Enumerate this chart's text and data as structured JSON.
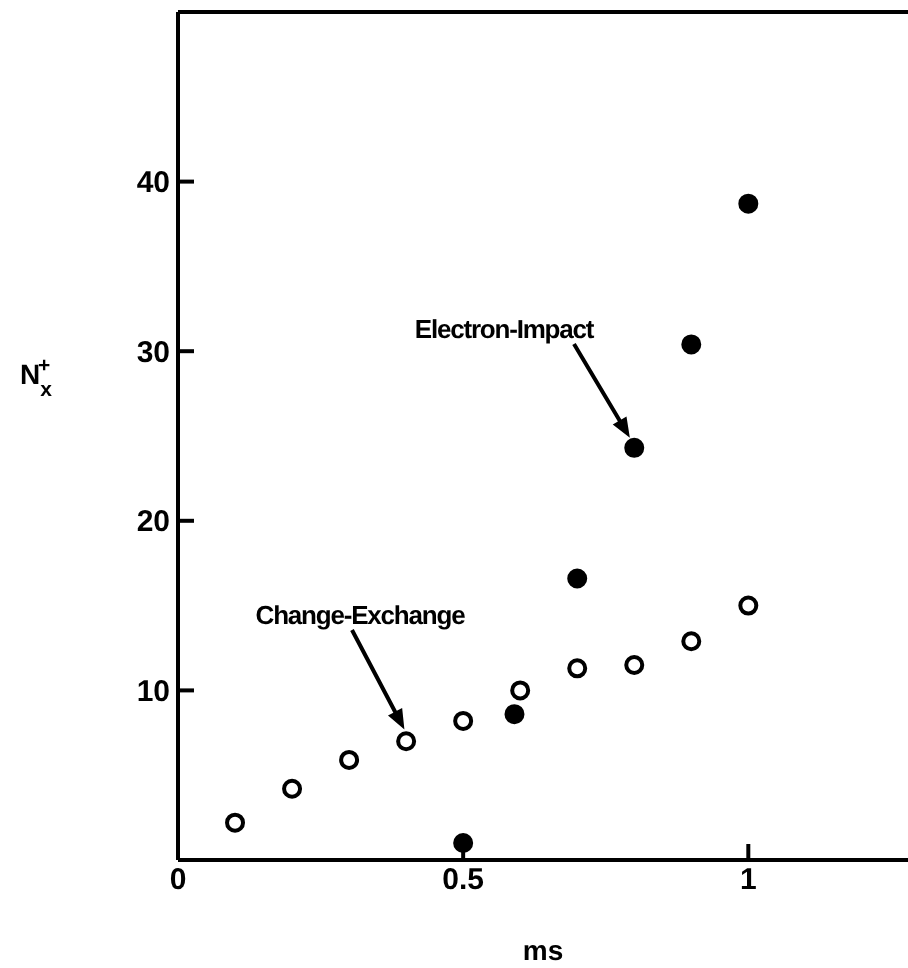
{
  "chart_data": {
    "type": "scatter",
    "xlabel": "ms",
    "ylabel": "N$_{x}$$^{+}$",
    "xlim": [
      0,
      1.28
    ],
    "xticks": [
      0,
      0.5,
      1
    ],
    "ylim": [
      0,
      50
    ],
    "yticks": [
      10,
      20,
      30,
      40
    ],
    "grid": false,
    "legend": false,
    "marker": "circle",
    "series": [
      {
        "color": "#ffffff",
        "x": [
          0.1,
          0.2,
          0.3,
          0.4,
          0.5,
          0.6,
          0.7,
          0.8,
          0.9,
          1.0
        ],
        "values": [
          2.2,
          4.2,
          5.9,
          7.0,
          8.2,
          10.0,
          11.3,
          11.5,
          12.9,
          15.0
        ]
      },
      {
        "color": "#000000",
        "x": [
          0.5,
          0.59,
          0.7,
          0.8,
          0.9,
          1.0
        ],
        "values": [
          1.0,
          8.6,
          16.6,
          24.3,
          30.4,
          38.7
        ]
      }
    ],
    "annotations": [
      "Electron-Impact",
      "Change-Exchange"
    ]
  }
}
